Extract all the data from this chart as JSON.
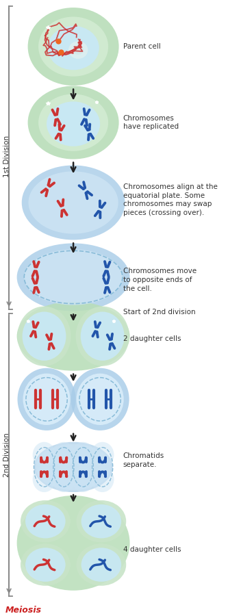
{
  "bg_color": "#ffffff",
  "green_outer": "#b8ddb8",
  "green_inner": "#d4ecd4",
  "blue_outer": "#a8cce8",
  "blue_inner": "#cce4f4",
  "blue_inner2": "#daeefa",
  "nucleus_blue": "#c8e8f8",
  "dashed_color": "#88bbd8",
  "red_chrom": "#cc3333",
  "blue_chrom": "#2255aa",
  "arrow_color": "#222222",
  "label_color": "#333333",
  "meiosis_color": "#cc2222",
  "bracket_color": "#888888",
  "stage_labels": [
    "Parent cell",
    "Chromosomes\nhave replicated",
    "Chromosomes align at the\nequatorial plate. Some\nchromosomes may swap\npieces (crossing over).",
    "Chromosomes move\nto opposite ends of\nthe cell.",
    "Start of 2nd division",
    "2 daughter cells",
    "Chromatids\nseparate.",
    "4 daughter cells"
  ],
  "div1_label": "1st Division",
  "div2_label": "2nd Division",
  "meiosis_label": "Meiosis"
}
